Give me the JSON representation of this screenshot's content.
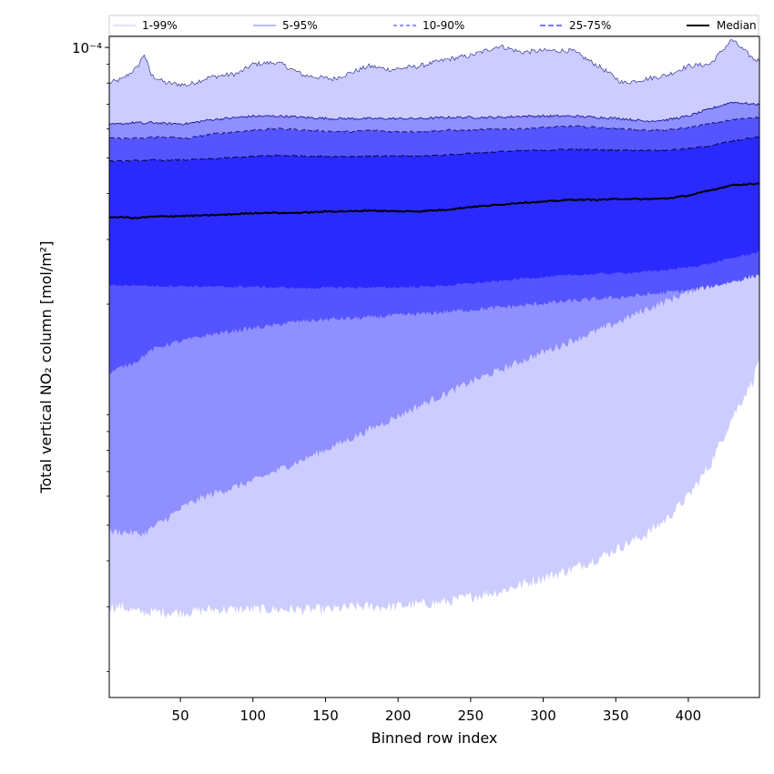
{
  "chart_data": {
    "type": "area",
    "title": "",
    "xlabel": "Binned row index",
    "ylabel": "Total vertical NO₂ column [mol/m²]",
    "xlim": [
      1,
      449
    ],
    "ylim_log10": [
      -5.77,
      -3.97
    ],
    "yscale": "log",
    "x_ticks": [
      50,
      100,
      150,
      200,
      250,
      300,
      350,
      400
    ],
    "y_tick_label": "10⁻⁴",
    "y_tick_value": 0.0001,
    "x": [
      1,
      10,
      20,
      25,
      30,
      40,
      55,
      70,
      90,
      100,
      115,
      120,
      135,
      155,
      170,
      180,
      195,
      215,
      235,
      250,
      270,
      285,
      300,
      320,
      340,
      355,
      370,
      385,
      400,
      415,
      430,
      445,
      449
    ],
    "series": [
      {
        "name": "1-99%",
        "color": "#ccccff",
        "line_color": "#1a1a8a",
        "dash": "none",
        "upper": [
          8e-05,
          8.2e-05,
          8.8e-05,
          9.6e-05,
          8.4e-05,
          8e-05,
          7.9e-05,
          8.3e-05,
          8.5e-05,
          9e-05,
          9.1e-05,
          9e-05,
          8.4e-05,
          8.2e-05,
          8.6e-05,
          8.9e-05,
          8.7e-05,
          8.9e-05,
          9.3e-05,
          9.5e-05,
          0.000101,
          9.7e-05,
          9.8e-05,
          9.8e-05,
          8.8e-05,
          8e-05,
          8.2e-05,
          8.4e-05,
          8.9e-05,
          9e-05,
          0.000105,
          9.3e-05,
          9.2e-05
        ],
        "lower": [
          3e-06,
          3e-06,
          2.9e-06,
          2.9e-06,
          2.9e-06,
          2.9e-06,
          2.9e-06,
          2.95e-06,
          2.95e-06,
          2.95e-06,
          2.95e-06,
          2.95e-06,
          2.95e-06,
          2.95e-06,
          3e-06,
          3e-06,
          3e-06,
          3.05e-06,
          3.1e-06,
          3.2e-06,
          3.3e-06,
          3.45e-06,
          3.6e-06,
          3.8e-06,
          4.1e-06,
          4.4e-06,
          4.7e-06,
          5.2e-06,
          6e-06,
          7.3e-06,
          9.8e-06,
          1.25e-05,
          1.45e-05
        ]
      },
      {
        "name": "5-95%",
        "color": "#8f8fff",
        "line_color": "#1a1a9a",
        "dash": "none",
        "upper": [
          6.15e-05,
          6.2e-05,
          6.25e-05,
          6.2e-05,
          6.25e-05,
          6.2e-05,
          6.2e-05,
          6.35e-05,
          6.45e-05,
          6.5e-05,
          6.5e-05,
          6.5e-05,
          6.45e-05,
          6.4e-05,
          6.4e-05,
          6.4e-05,
          6.4e-05,
          6.4e-05,
          6.45e-05,
          6.45e-05,
          6.45e-05,
          6.5e-05,
          6.5e-05,
          6.5e-05,
          6.45e-05,
          6.4e-05,
          6.3e-05,
          6.35e-05,
          6.5e-05,
          6.8e-05,
          7.1e-05,
          7e-05,
          7e-05
        ],
        "lower": [
          4.8e-06,
          4.8e-06,
          4.75e-06,
          4.75e-06,
          4.9e-06,
          5.2e-06,
          5.7e-06,
          6.05e-06,
          6.4e-06,
          6.6e-06,
          7e-06,
          7.15e-06,
          7.55e-06,
          8.2e-06,
          8.7e-06,
          9.1e-06,
          9.7e-06,
          1.06e-05,
          1.15e-05,
          1.23e-05,
          1.32e-05,
          1.4e-05,
          1.48e-05,
          1.59e-05,
          1.71e-05,
          1.81e-05,
          1.93e-05,
          2.04e-05,
          2.16e-05,
          2.31e-05,
          2.46e-05,
          2.61e-05,
          2.68e-05
        ]
      },
      {
        "name": "10-90%",
        "color": "#5555ff",
        "line_color": "#101070",
        "dash": "6,3",
        "upper": [
          5.65e-05,
          5.65e-05,
          5.65e-05,
          5.65e-05,
          5.7e-05,
          5.7e-05,
          5.65e-05,
          5.8e-05,
          5.9e-05,
          5.95e-05,
          6e-05,
          6e-05,
          5.95e-05,
          5.9e-05,
          5.9e-05,
          5.95e-05,
          5.9e-05,
          5.9e-05,
          5.95e-05,
          5.95e-05,
          6e-05,
          6e-05,
          6.05e-05,
          6.1e-05,
          6.05e-05,
          6e-05,
          5.95e-05,
          5.95e-05,
          6.05e-05,
          6.2e-05,
          6.35e-05,
          6.45e-05,
          6.45e-05
        ],
        "lower": [
          1.3e-05,
          1.35e-05,
          1.4e-05,
          1.45e-05,
          1.5e-05,
          1.55e-05,
          1.6e-05,
          1.65e-05,
          1.7e-05,
          1.72e-05,
          1.75e-05,
          1.77e-05,
          1.8e-05,
          1.82e-05,
          1.83e-05,
          1.84e-05,
          1.86e-05,
          1.88e-05,
          1.91e-05,
          1.93e-05,
          1.96e-05,
          1.98e-05,
          2.01e-05,
          2.04e-05,
          2.07e-05,
          2.09e-05,
          2.12e-05,
          2.15e-05,
          2.18e-05,
          2.23e-05,
          2.3e-05,
          2.38e-05,
          2.4e-05
        ]
      },
      {
        "name": "25-75%",
        "color": "#2a2aff",
        "line_color": "#000033",
        "dash": "7,3",
        "upper": [
          4.9e-05,
          4.9e-05,
          4.92e-05,
          4.93e-05,
          4.93e-05,
          4.93e-05,
          4.94e-05,
          4.97e-05,
          5.02e-05,
          5.05e-05,
          5.08e-05,
          5.08e-05,
          5.06e-05,
          5.05e-05,
          5.05e-05,
          5.06e-05,
          5.06e-05,
          5.06e-05,
          5.1e-05,
          5.15e-05,
          5.2e-05,
          5.23e-05,
          5.25e-05,
          5.28e-05,
          5.26e-05,
          5.25e-05,
          5.25e-05,
          5.25e-05,
          5.3e-05,
          5.4e-05,
          5.55e-05,
          5.68e-05,
          5.7e-05
        ],
        "lower": [
          2.25e-05,
          2.25e-05,
          2.25e-05,
          2.25e-05,
          2.24e-05,
          2.24e-05,
          2.24e-05,
          2.23e-05,
          2.23e-05,
          2.23e-05,
          2.22e-05,
          2.22e-05,
          2.21e-05,
          2.22e-05,
          2.22e-05,
          2.22e-05,
          2.22e-05,
          2.23e-05,
          2.25e-05,
          2.28e-05,
          2.31e-05,
          2.35e-05,
          2.37e-05,
          2.4e-05,
          2.42e-05,
          2.43e-05,
          2.45e-05,
          2.48e-05,
          2.52e-05,
          2.58e-05,
          2.67e-05,
          2.75e-05,
          2.78e-05
        ]
      },
      {
        "name": "Median",
        "color": "#000000",
        "line_color": "#000000",
        "dash": "none",
        "values": [
          3.45e-05,
          3.45e-05,
          3.43e-05,
          3.45e-05,
          3.46e-05,
          3.47e-05,
          3.48e-05,
          3.49e-05,
          3.52e-05,
          3.54e-05,
          3.55e-05,
          3.54e-05,
          3.55e-05,
          3.58e-05,
          3.58e-05,
          3.6e-05,
          3.58e-05,
          3.58e-05,
          3.62e-05,
          3.68e-05,
          3.73e-05,
          3.78e-05,
          3.8e-05,
          3.85e-05,
          3.85e-05,
          3.87e-05,
          3.86e-05,
          3.88e-05,
          3.95e-05,
          4.08e-05,
          4.22e-05,
          4.25e-05,
          4.27e-05
        ]
      }
    ],
    "legend": {
      "placement": "top",
      "entries": [
        {
          "label": "1-99%",
          "color": "#d0d0ff",
          "dash": "none"
        },
        {
          "label": "5-95%",
          "color": "#8f8fff",
          "dash": "none"
        },
        {
          "label": "10-90%",
          "color": "#5555ff",
          "dash": "4,3"
        },
        {
          "label": "25-75%",
          "color": "#2a2aff",
          "dash": "6,3"
        },
        {
          "label": "Median",
          "color": "#000000",
          "dash": "none"
        }
      ]
    }
  }
}
